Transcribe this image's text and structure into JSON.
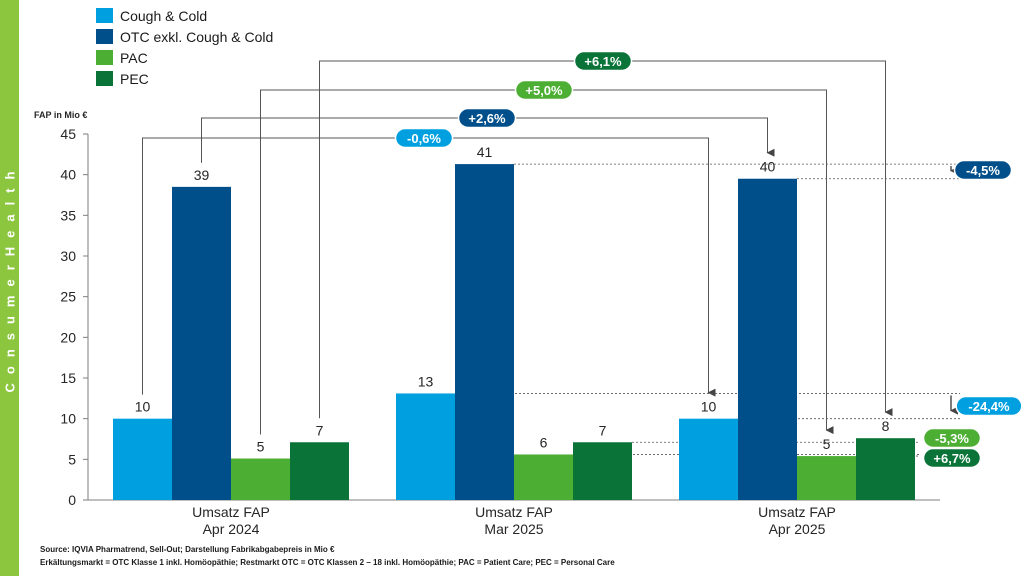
{
  "sidebar": {
    "text": "ConsumerHealth"
  },
  "legend": [
    {
      "label": "Cough & Cold",
      "color": "#00a0e0"
    },
    {
      "label": "OTC exkl. Cough & Cold",
      "color": "#004f8a"
    },
    {
      "label": "PAC",
      "color": "#4caf33"
    },
    {
      "label": "PEC",
      "color": "#0a7338"
    }
  ],
  "footer": {
    "line1": "Source: IQVIA Pharmatrend, Sell-Out; Darstellung Fabrikabgabepreis in Mio €",
    "line2": "Erkältungsmarkt = OTC Klasse 1 inkl. Homöopäthie; Restmarkt OTC = OTC Klassen 2 – 18 inkl. Homöopäthie; PAC = Patient Care; PEC = Personal Care"
  },
  "chart_data": {
    "type": "bar",
    "ylabel": "FAP in Mio €",
    "ylim": [
      0,
      45
    ],
    "yticks": [
      0,
      5,
      10,
      15,
      20,
      25,
      30,
      35,
      40,
      45
    ],
    "categories": [
      [
        "Umsatz FAP",
        "Apr 2024"
      ],
      [
        "Umsatz FAP",
        "Mar 2025"
      ],
      [
        "Umsatz FAP",
        "Apr 2025"
      ]
    ],
    "series": [
      {
        "name": "Cough & Cold",
        "values": [
          10,
          13.1,
          10
        ],
        "labels": [
          "10",
          "13",
          "10"
        ]
      },
      {
        "name": "OTC exkl. Cough & Cold",
        "values": [
          38.5,
          41.3,
          39.5
        ],
        "labels": [
          "39",
          "41",
          "40"
        ]
      },
      {
        "name": "PAC",
        "values": [
          5.1,
          5.6,
          5.4
        ],
        "labels": [
          "5",
          "6",
          "5"
        ]
      },
      {
        "name": "PEC",
        "values": [
          7.1,
          7.1,
          7.6
        ],
        "labels": [
          "7",
          "7",
          "8"
        ]
      }
    ],
    "yoy_changes": [
      {
        "series": 0,
        "label": "-0,6%",
        "color": "#00a0e0"
      },
      {
        "series": 1,
        "label": "+2,6%",
        "color": "#004f8a"
      },
      {
        "series": 2,
        "label": "+5,0%",
        "color": "#4caf33"
      },
      {
        "series": 3,
        "label": "+6,1%",
        "color": "#0a7338"
      }
    ],
    "mom_changes": [
      {
        "series": 1,
        "label": "-4,5%",
        "color": "#004f8a"
      },
      {
        "series": 0,
        "label": "-24,4%",
        "color": "#00a0e0"
      },
      {
        "series": 2,
        "label": "-5,3%",
        "color": "#4caf33"
      },
      {
        "series": 3,
        "label": "+6,7%",
        "color": "#0a7338"
      }
    ]
  }
}
